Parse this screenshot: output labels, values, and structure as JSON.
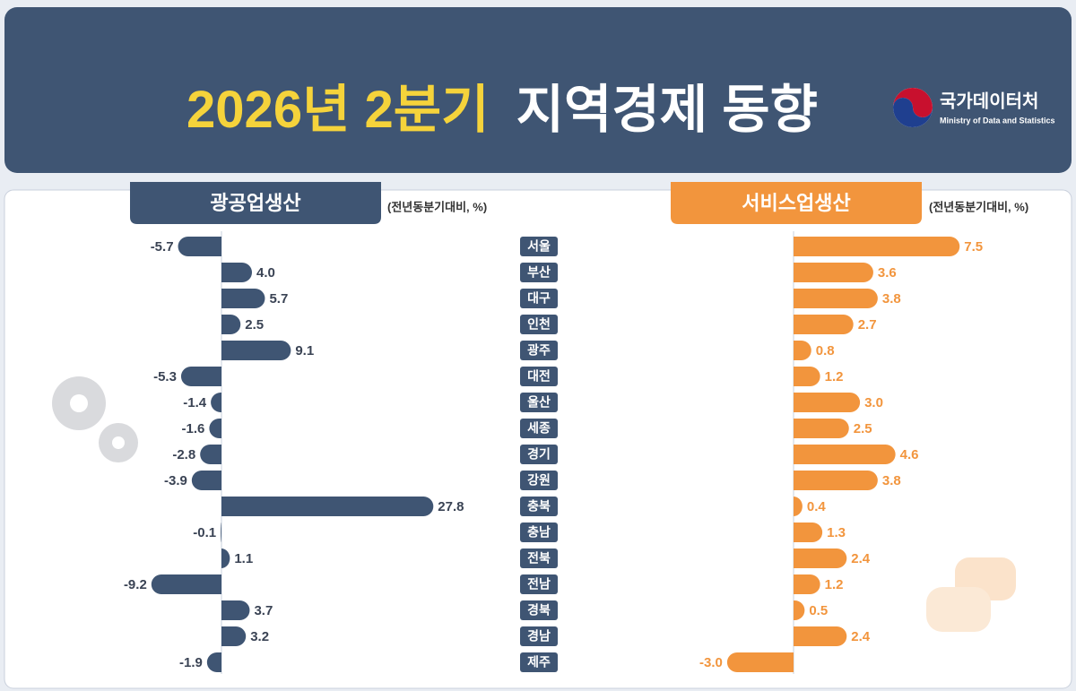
{
  "logo": {
    "name": "국가데이터처",
    "english": "Ministry of Data and Statistics"
  },
  "chart_data": {
    "type": "bar",
    "title_period": "2026년 2분기",
    "title": "지역경제 동향",
    "unit": "(전년동분기대비, %)",
    "categories": [
      "서울",
      "부산",
      "대구",
      "인천",
      "광주",
      "대전",
      "울산",
      "세종",
      "경기",
      "강원",
      "충북",
      "충남",
      "전북",
      "전남",
      "경북",
      "경남",
      "제주"
    ],
    "series": [
      {
        "name": "광공업생산",
        "color": "#3f5573",
        "values": [
          -5.7,
          4.0,
          5.7,
          2.5,
          9.1,
          -5.3,
          -1.4,
          -1.6,
          -2.8,
          -3.9,
          27.8,
          -0.1,
          1.1,
          -9.2,
          3.7,
          3.2,
          -1.9
        ],
        "value_labels": [
          "-5.7",
          "4.0",
          "5.7",
          "2.5",
          "9.1",
          "-5.3",
          "-1.4",
          "-1.6",
          "-2.8",
          "-3.9",
          "27.8",
          "-0.1",
          "1.1",
          "-9.2",
          "3.7",
          "3.2",
          "-1.9"
        ]
      },
      {
        "name": "서비스업생산",
        "color": "#f2953d",
        "values": [
          7.5,
          3.6,
          3.8,
          2.7,
          0.8,
          1.2,
          3.0,
          2.5,
          4.6,
          3.8,
          0.4,
          1.3,
          2.4,
          1.2,
          0.5,
          2.4,
          -3.0
        ],
        "value_labels": [
          "7.5",
          "3.6",
          "3.8",
          "2.7",
          "0.8",
          "1.2",
          "3.0",
          "2.5",
          "4.6",
          "3.8",
          "0.4",
          "1.3",
          "2.4",
          "1.2",
          "0.5",
          "2.4",
          "-3.0"
        ]
      }
    ]
  }
}
